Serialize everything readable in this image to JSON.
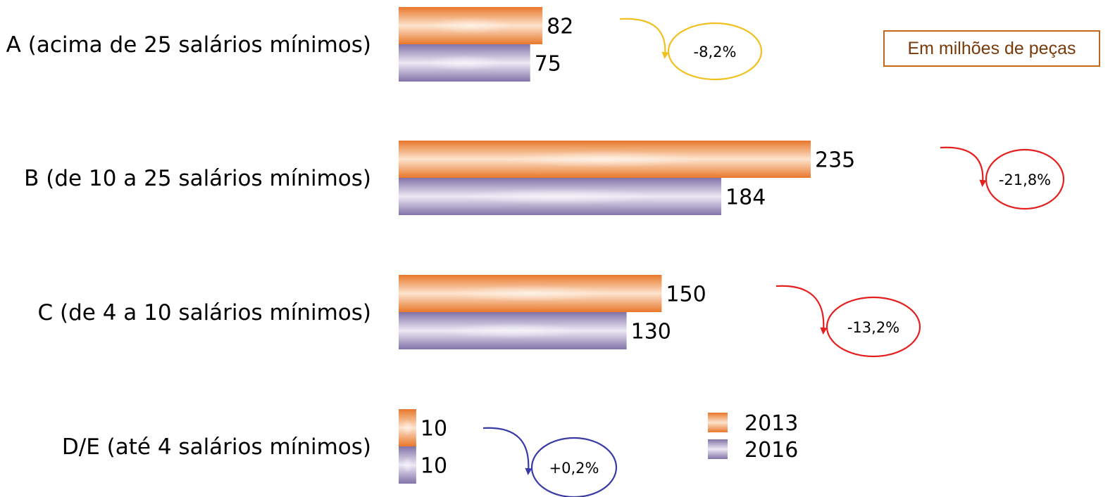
{
  "unit_note": "Em milhões de peças",
  "colors": {
    "series_2013": "#ef8a3a",
    "series_2016": "#8f80b3",
    "decrease_small": "#f2c01e",
    "decrease": "#e51e1e",
    "increase": "#3a3aa6"
  },
  "chart_data": {
    "type": "bar",
    "orientation": "horizontal",
    "categories": [
      "A (acima de 25 salários mínimos)",
      "B (de 10 a 25 salários mínimos)",
      "C (de 4 a 10 salários mínimos)",
      "D/E (até 4 salários mínimos)"
    ],
    "series": [
      {
        "name": "2013",
        "values": [
          82,
          235,
          150,
          10
        ]
      },
      {
        "name": "2016",
        "values": [
          75,
          184,
          130,
          10
        ]
      }
    ],
    "data_labels": {
      "2013": [
        "82",
        "235",
        "150",
        "10"
      ],
      "2016": [
        "75",
        "184",
        "130",
        "10"
      ]
    },
    "changes": [
      "-8,2%",
      "-21,8%",
      "-13,2%",
      "+0,2%"
    ],
    "change_colors": [
      "decrease_small",
      "decrease",
      "decrease",
      "increase"
    ],
    "legend": [
      "2013",
      "2016"
    ],
    "legend_position": "bottom-right",
    "grid": false,
    "xlim": [
      0,
      235
    ]
  }
}
